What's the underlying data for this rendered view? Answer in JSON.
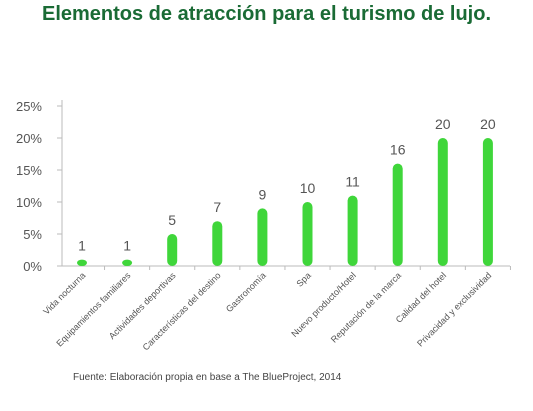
{
  "title": "Elementos de atracción para el turismo de lujo.",
  "source": "Fuente: Elaboración propia en base a The BlueProject, 2014",
  "bar_color": "#3fd63a",
  "chart_data": {
    "type": "bar",
    "title": "Elementos de atracción para el turismo de lujo.",
    "categories": [
      "Vida nocturna",
      "Equipamientos familiares",
      "Actividades deportivas",
      "Características del destino",
      "Gastronomía",
      "Spa",
      "Nuevo producto/Hotel",
      "Reputación de la marca",
      "Calidad del hotel",
      "Privacidad y exclusividad"
    ],
    "values": [
      1,
      1,
      5,
      7,
      9,
      10,
      11,
      16,
      20,
      20
    ],
    "data_labels": [
      "1",
      "1",
      "5",
      "7",
      "9",
      "10",
      "11",
      "16",
      "20",
      "20"
    ],
    "yticks": [
      "0%",
      "5%",
      "10%",
      "15%",
      "20%",
      "25%"
    ],
    "ytick_values": [
      0,
      5,
      10,
      15,
      20,
      25
    ],
    "ylim": [
      0,
      25
    ],
    "xlabel": "",
    "ylabel": "",
    "grid": false,
    "legend": "none"
  }
}
